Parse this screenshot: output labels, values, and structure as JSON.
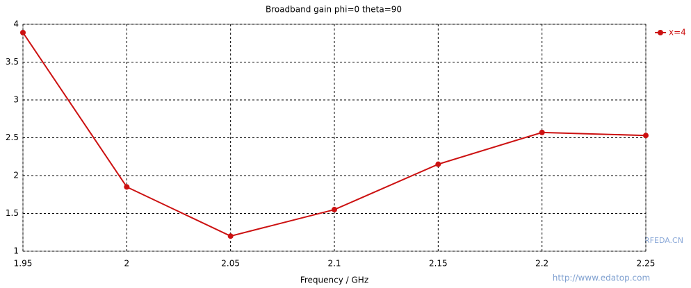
{
  "chart_data": {
    "type": "line",
    "title": "Broadband gain phi=0 theta=90",
    "x_label": "Frequency / GHz",
    "x": [
      1.95,
      2,
      2.05,
      2.1,
      2.15,
      2.2,
      2.25
    ],
    "series": [
      {
        "name": "x=4",
        "color": "#cc1111",
        "values": [
          3.89,
          1.85,
          1.2,
          1.55,
          2.15,
          2.57,
          2.53
        ]
      }
    ],
    "xlim": [
      1.95,
      2.25
    ],
    "xticks": [
      1.95,
      2,
      2.05,
      2.1,
      2.15,
      2.2,
      2.25
    ],
    "ylim": [
      1,
      4
    ],
    "yticks": [
      1,
      1.5,
      2,
      2.5,
      3,
      3.5,
      4
    ],
    "grid": true,
    "legend": "right",
    "watermarks": [
      "RFEDA.CN",
      "http://www.edatop.com"
    ]
  }
}
